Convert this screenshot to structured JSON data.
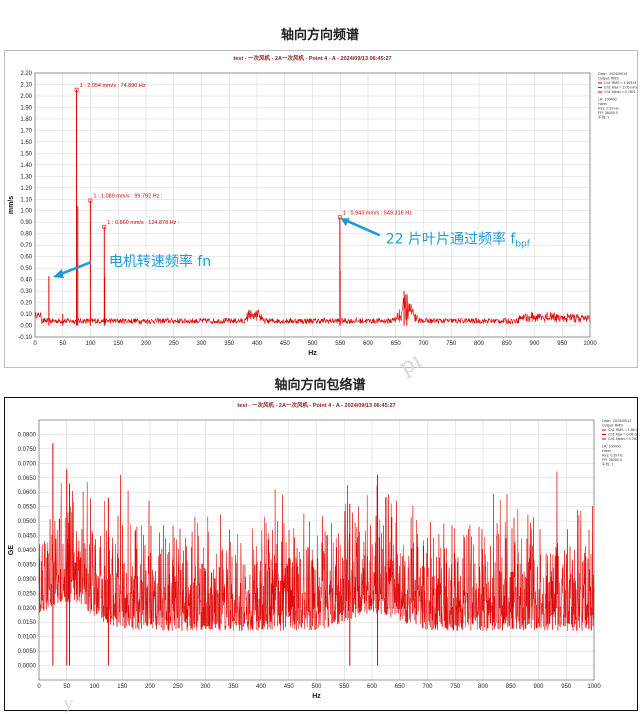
{
  "headings": {
    "top": "轴向方向频谱",
    "bottom": "轴向方向包络谱"
  },
  "watermark": {
    "mid": "pı",
    "bottom": "y"
  },
  "colors": {
    "signal": "#e00000",
    "grid": "#d4d4d4",
    "callout": "#1e9bd7"
  },
  "legend": {
    "lines": [
      "Date：2024/09/13",
      "Output: RMS",
      "",
      "",
      "",
      "LR: 100400",
      "Hann",
      "Res: 0.39 Hz",
      "FR: 36000.0",
      "平均: 1"
    ],
    "series": [
      "Ch1 RMS = 1.89141",
      "Ch1 Max = 2.05 mm/s",
      "Ch1 Mean = 0.7801"
    ],
    "series2": [
      "Ch1 RMS = 1.86 GE",
      "Ch1 Max = 0.08 GE",
      "Ch1 Mean = 0.7801"
    ]
  },
  "chart_data": [
    {
      "type": "line",
      "title": "test - 一次风机 - 2A一次风机 - Point 4 - A - 2024/09/13 06:45:27",
      "xlabel": "Hz",
      "ylabel": "mm/s",
      "xlim": [
        0,
        1000
      ],
      "ylim": [
        -0.1,
        2.2
      ],
      "xticks": [
        0,
        50,
        100,
        150,
        200,
        250,
        300,
        350,
        400,
        450,
        500,
        550,
        600,
        650,
        700,
        750,
        800,
        850,
        900,
        950,
        1000
      ],
      "yticks": [
        -0.1,
        0,
        0.1,
        0.2,
        0.3,
        0.4,
        0.5,
        0.6,
        0.7,
        0.8,
        0.9,
        1.0,
        1.1,
        1.2,
        1.3,
        1.4,
        1.5,
        1.6,
        1.7,
        1.8,
        1.9,
        2.0,
        2.1,
        2.2
      ],
      "ytick_labels": [
        "-0.10",
        "0.00",
        "0.10",
        "0.20",
        "0.30",
        "0.40",
        "0.50",
        "0.60",
        "0.70",
        "0.80",
        "0.90",
        "1.00",
        "1.10",
        "1.20",
        "1.30",
        "1.40",
        "1.50",
        "1.60",
        "1.70",
        "1.80",
        "1.90",
        "2.00",
        "2.10",
        "2.20"
      ],
      "grid": true,
      "legend_position": "right",
      "peaks": [
        {
          "x": 25,
          "y": 0.43
        },
        {
          "x": 50,
          "y": 0.1
        },
        {
          "x": 74.89,
          "y": 2.054
        },
        {
          "x": 77,
          "y": 1.04
        },
        {
          "x": 99.79,
          "y": 1.089
        },
        {
          "x": 124.88,
          "y": 0.86
        },
        {
          "x": 125.5,
          "y": 0.42
        },
        {
          "x": 549.32,
          "y": 0.943
        },
        {
          "x": 549.8,
          "y": 0.48
        },
        {
          "x": 665,
          "y": 0.3
        },
        {
          "x": 670,
          "y": 0.27
        }
      ],
      "annotations": [
        {
          "text": "1 : 2.054 mm/s : 74.890 Hz",
          "x": 74.89,
          "y": 2.054
        },
        {
          "text": "1 : 1.089 mm/s : 99.792 Hz :",
          "x": 99.79,
          "y": 1.089
        },
        {
          "text": "1 : 0.860 mm/s : 124.878 Hz :",
          "x": 124.88,
          "y": 0.86
        },
        {
          "text": "1 : 0.943 mm/s : 549.316 Hz",
          "x": 549.32,
          "y": 0.943
        }
      ],
      "callouts": [
        {
          "text": "电机转速频率 fn",
          "x": 25,
          "y": 0.43
        },
        {
          "text": "22 片叶片通过频率 f",
          "sub": "bpf",
          "x": 549,
          "y": 0.943
        }
      ]
    },
    {
      "type": "line",
      "title": "test - 一次风机 - 2A一次风机 - Point 4 - A - 2024/09/13 06:45:27",
      "xlabel": "Hz",
      "ylabel": "GE",
      "xlim": [
        0,
        1000
      ],
      "ylim": [
        -0.005,
        0.085
      ],
      "xticks": [
        0,
        50,
        100,
        150,
        200,
        250,
        300,
        350,
        400,
        450,
        500,
        550,
        600,
        650,
        700,
        750,
        800,
        850,
        900,
        950,
        1000
      ],
      "yticks": [
        0,
        0.005,
        0.01,
        0.015,
        0.02,
        0.025,
        0.03,
        0.035,
        0.04,
        0.045,
        0.05,
        0.055,
        0.06,
        0.065,
        0.07,
        0.075,
        0.08
      ],
      "ytick_labels": [
        "0.0000",
        "0.0050",
        "0.0100",
        "0.0150",
        "0.0200",
        "0.0250",
        "0.0300",
        "0.0350",
        "0.0400",
        "0.0450",
        "0.0500",
        "0.0550",
        "0.0600",
        "0.0650",
        "0.0700",
        "0.0750",
        "0.0800"
      ],
      "grid": true,
      "legend_position": "right",
      "peaks": [
        {
          "x": 25,
          "y": 0.077
        },
        {
          "x": 50,
          "y": 0.068
        },
        {
          "x": 55,
          "y": 0.063
        },
        {
          "x": 610,
          "y": 0.066
        },
        {
          "x": 125,
          "y": 0.058
        },
        {
          "x": 560,
          "y": 0.056
        }
      ]
    }
  ]
}
